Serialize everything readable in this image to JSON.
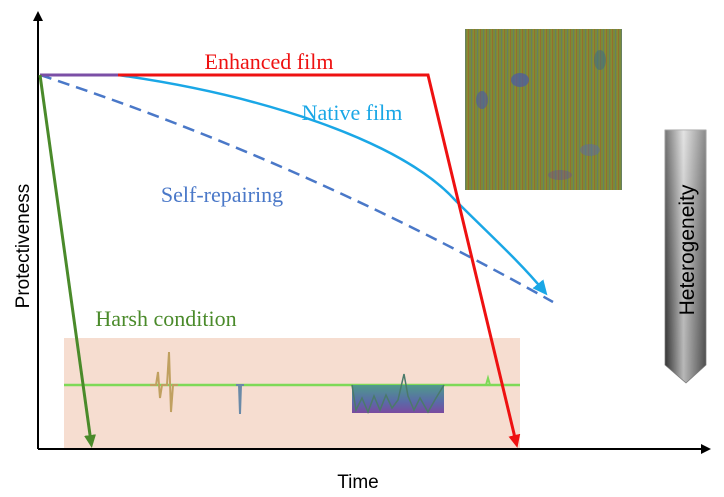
{
  "axes": {
    "x_label": "Time",
    "y_label": "Protectiveness"
  },
  "curves": {
    "enhanced": {
      "label": "Enhanced film",
      "color": "#ee1111"
    },
    "native": {
      "label": "Native film",
      "color": "#1aa7e6"
    },
    "self_repairing": {
      "label": "Self-repairing",
      "color": "#4a78c8"
    },
    "harsh": {
      "label": "Harsh condition",
      "color": "#4a8a2a"
    }
  },
  "heterogeneity": {
    "label": "Heterogeneity"
  },
  "colors": {
    "axis": "#000000",
    "panel_bg": "#f6ddd0",
    "signal": "#7ed957",
    "initial_segment": "#7b4fa6"
  }
}
